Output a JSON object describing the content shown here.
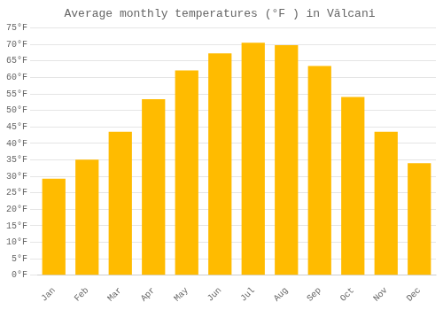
{
  "chart_data": {
    "type": "bar",
    "title": "Average monthly temperatures (°F ) in Vălcani",
    "categories": [
      "Jan",
      "Feb",
      "Mar",
      "Apr",
      "May",
      "Jun",
      "Jul",
      "Aug",
      "Sep",
      "Oct",
      "Nov",
      "Dec"
    ],
    "values": [
      29.3,
      35.1,
      43.5,
      53.4,
      62.1,
      67.3,
      70.5,
      69.8,
      63.5,
      54.1,
      43.5,
      34.0
    ],
    "color": "#FFBB00",
    "ylim": [
      0,
      75
    ],
    "yticks": [
      {
        "value": 0,
        "label": "0°F"
      },
      {
        "value": 5,
        "label": "5°F"
      },
      {
        "value": 10,
        "label": "10°F"
      },
      {
        "value": 15,
        "label": "15°F"
      },
      {
        "value": 20,
        "label": "20°F"
      },
      {
        "value": 25,
        "label": "25°F"
      },
      {
        "value": 30,
        "label": "30°F"
      },
      {
        "value": 35,
        "label": "35°F"
      },
      {
        "value": 40,
        "label": "40°F"
      },
      {
        "value": 45,
        "label": "45°F"
      },
      {
        "value": 50,
        "label": "50°F"
      },
      {
        "value": 55,
        "label": "55°F"
      },
      {
        "value": 60,
        "label": "60°F"
      },
      {
        "value": 65,
        "label": "65°F"
      },
      {
        "value": 70,
        "label": "70°F"
      },
      {
        "value": 75,
        "label": "75°F"
      }
    ],
    "grid": true
  }
}
